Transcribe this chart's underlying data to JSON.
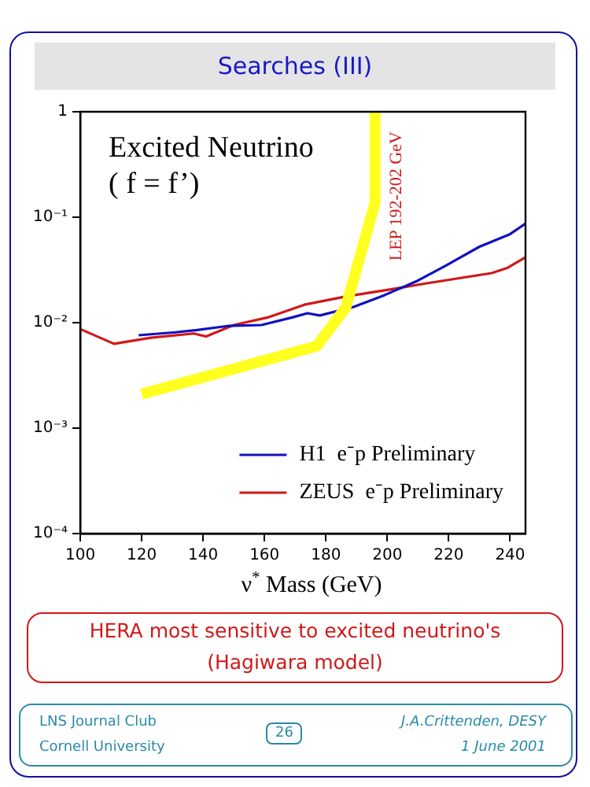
{
  "chart_data": {
    "type": "line",
    "title": "Searches (III)",
    "subtitle": "Excited Neutrino\n( f = f’)",
    "xlabel": "ν$^{*}$ Mass (GeV)",
    "xlim": [
      100,
      245
    ],
    "xticks": [
      100,
      120,
      140,
      160,
      180,
      200,
      220,
      240
    ],
    "ylim": [
      0.0001,
      1
    ],
    "log": "y",
    "yticks": [
      {
        "value": 0.0001,
        "label": "10⁻⁴"
      },
      {
        "value": 0.001,
        "label": "10⁻³"
      },
      {
        "value": 0.01,
        "label": "10⁻²"
      },
      {
        "value": 0.1,
        "label": "10⁻¹"
      },
      1
    ],
    "grid": false,
    "legend": "bottom right",
    "marker": "none",
    "line_style": "solid",
    "series": [
      {
        "name": "H1  e⁻p Preliminary",
        "color": "#1010c0",
        "x": [
          119,
          131,
          138,
          148,
          159,
          169,
          174,
          178,
          189,
          199,
          210,
          219,
          230,
          240,
          245
        ],
        "values": [
          0.0076,
          0.0081,
          0.0085,
          0.0093,
          0.0095,
          0.0112,
          0.0123,
          0.0117,
          0.0141,
          0.0182,
          0.0251,
          0.0347,
          0.0525,
          0.0692,
          0.087
        ]
      },
      {
        "name": "ZEUS  e⁻p Preliminary",
        "color": "#d01818",
        "x": [
          100,
          111,
          123,
          137,
          141,
          150,
          161,
          173,
          187,
          202,
          212,
          223,
          234,
          239,
          245
        ],
        "values": [
          0.0087,
          0.0063,
          0.0072,
          0.0079,
          0.0074,
          0.0095,
          0.0112,
          0.0148,
          0.0178,
          0.0209,
          0.0234,
          0.0263,
          0.0295,
          0.033,
          0.0417
        ]
      },
      {
        "color": "#ffff20",
        "x": [
          120,
          177,
          186.5,
          196,
          196
        ],
        "values": [
          0.0021,
          0.006,
          0.014,
          0.138,
          1
        ]
      }
    ],
    "annotations": [
      "LEP 192-202 GeV",
      "HERA most sensitive to excited neutrino's",
      "(Hagiwara model)",
      "LNS Journal Club",
      "Cornell University",
      "26",
      "J.A.Crittenden, DESY",
      "1 June 2001"
    ]
  }
}
